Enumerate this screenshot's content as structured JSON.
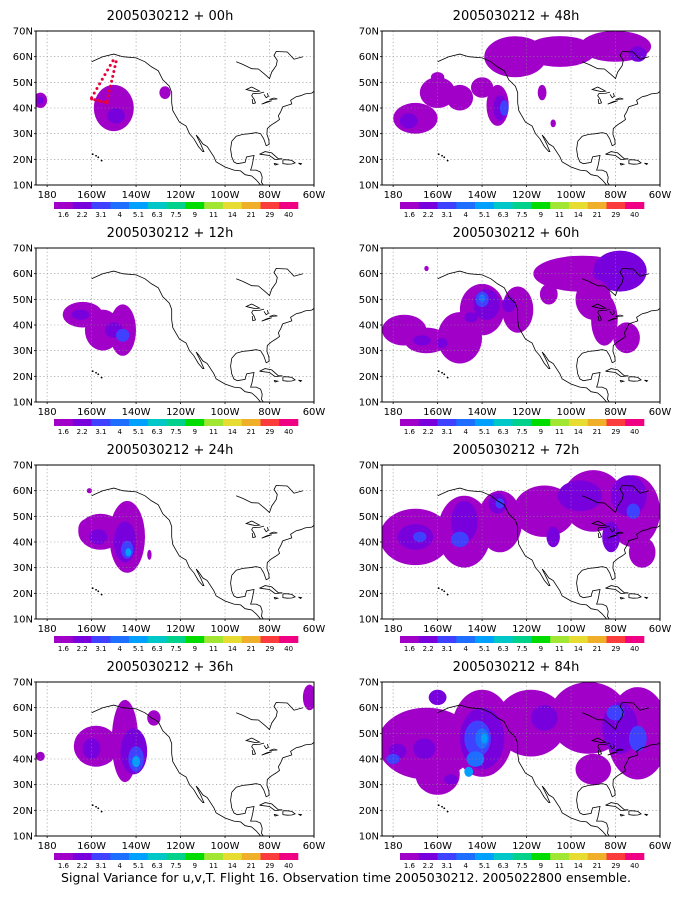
{
  "caption": "Signal Variance for u,v,T. Flight 16. Observation time 2005030212. 2005022800 ensemble.",
  "lat_labels": [
    "70N",
    "60N",
    "50N",
    "40N",
    "30N",
    "20N",
    "10N"
  ],
  "lon_labels": [
    "180",
    "160W",
    "140W",
    "120W",
    "100W",
    "80W",
    "60W"
  ],
  "colorbar": {
    "labels": [
      "1.6",
      "2.2",
      "3.1",
      "4",
      "5.1",
      "6.3",
      "7.5",
      "9",
      "11",
      "14",
      "21",
      "29",
      "40"
    ],
    "colors": [
      "#a000c8",
      "#7800dc",
      "#4040ff",
      "#1e6eff",
      "#00a0ff",
      "#00c8c8",
      "#00d28c",
      "#00dc00",
      "#a0e632",
      "#e6dc32",
      "#f0af28",
      "#fa3c3c",
      "#f00082"
    ]
  },
  "panels": [
    {
      "title": "2005030212 + 00h"
    },
    {
      "title": "2005030212 + 12h"
    },
    {
      "title": "2005030212 + 24h"
    },
    {
      "title": "2005030212 + 36h"
    },
    {
      "title": "2005030212 + 48h"
    },
    {
      "title": "2005030212 + 60h"
    },
    {
      "title": "2005030212 + 72h"
    },
    {
      "title": "2005030212 + 84h"
    }
  ]
}
